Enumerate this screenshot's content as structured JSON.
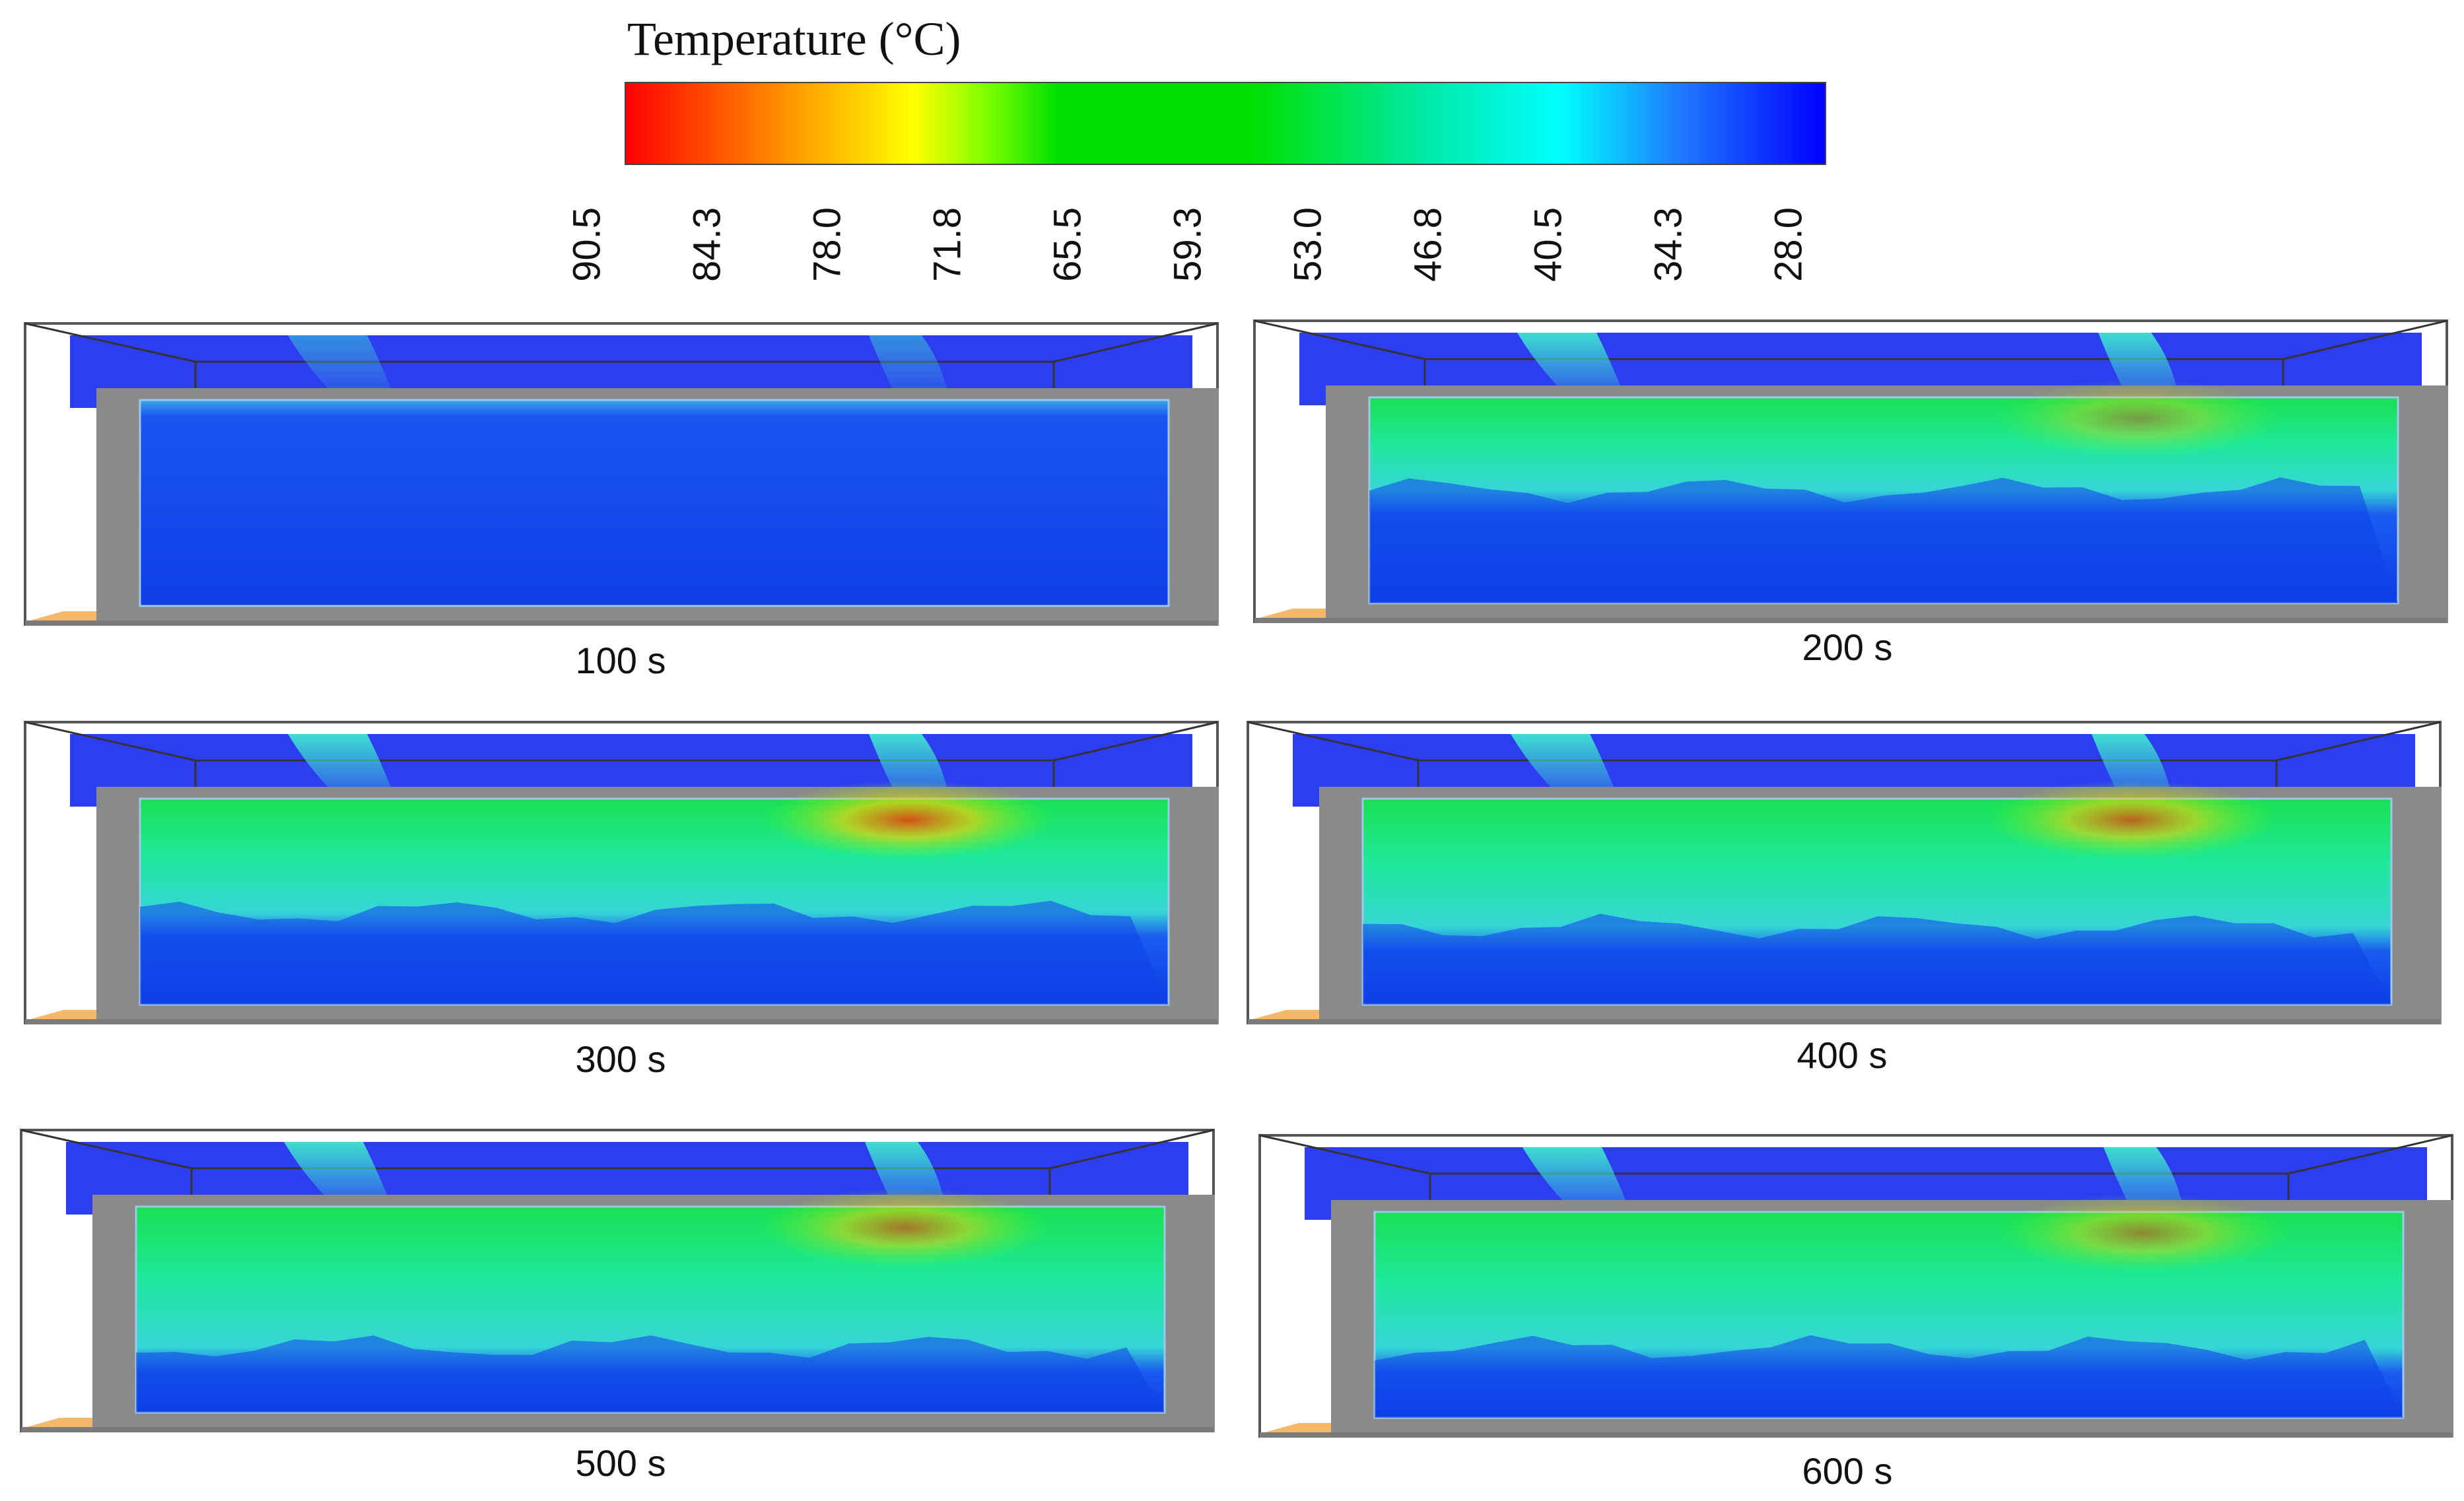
{
  "legend": {
    "title": "Temperature (°C)",
    "ticks": [
      "90.5",
      "84.3",
      "78.0",
      "71.8",
      "65.5",
      "59.3",
      "53.0",
      "46.8",
      "40.5",
      "34.3",
      "28.0"
    ],
    "colors": {
      "hot": "#ff0000",
      "orange": "#ff9a00",
      "yellow": "#ffff00",
      "green": "#00e000",
      "cyan": "#00ffff",
      "cool": "#1f78ff",
      "cold": "#0000ff"
    }
  },
  "panels": [
    {
      "label": "100 s"
    },
    {
      "label": "200 s"
    },
    {
      "label": "300 s"
    },
    {
      "label": "400 s"
    },
    {
      "label": "500 s"
    },
    {
      "label": "600 s"
    }
  ]
}
